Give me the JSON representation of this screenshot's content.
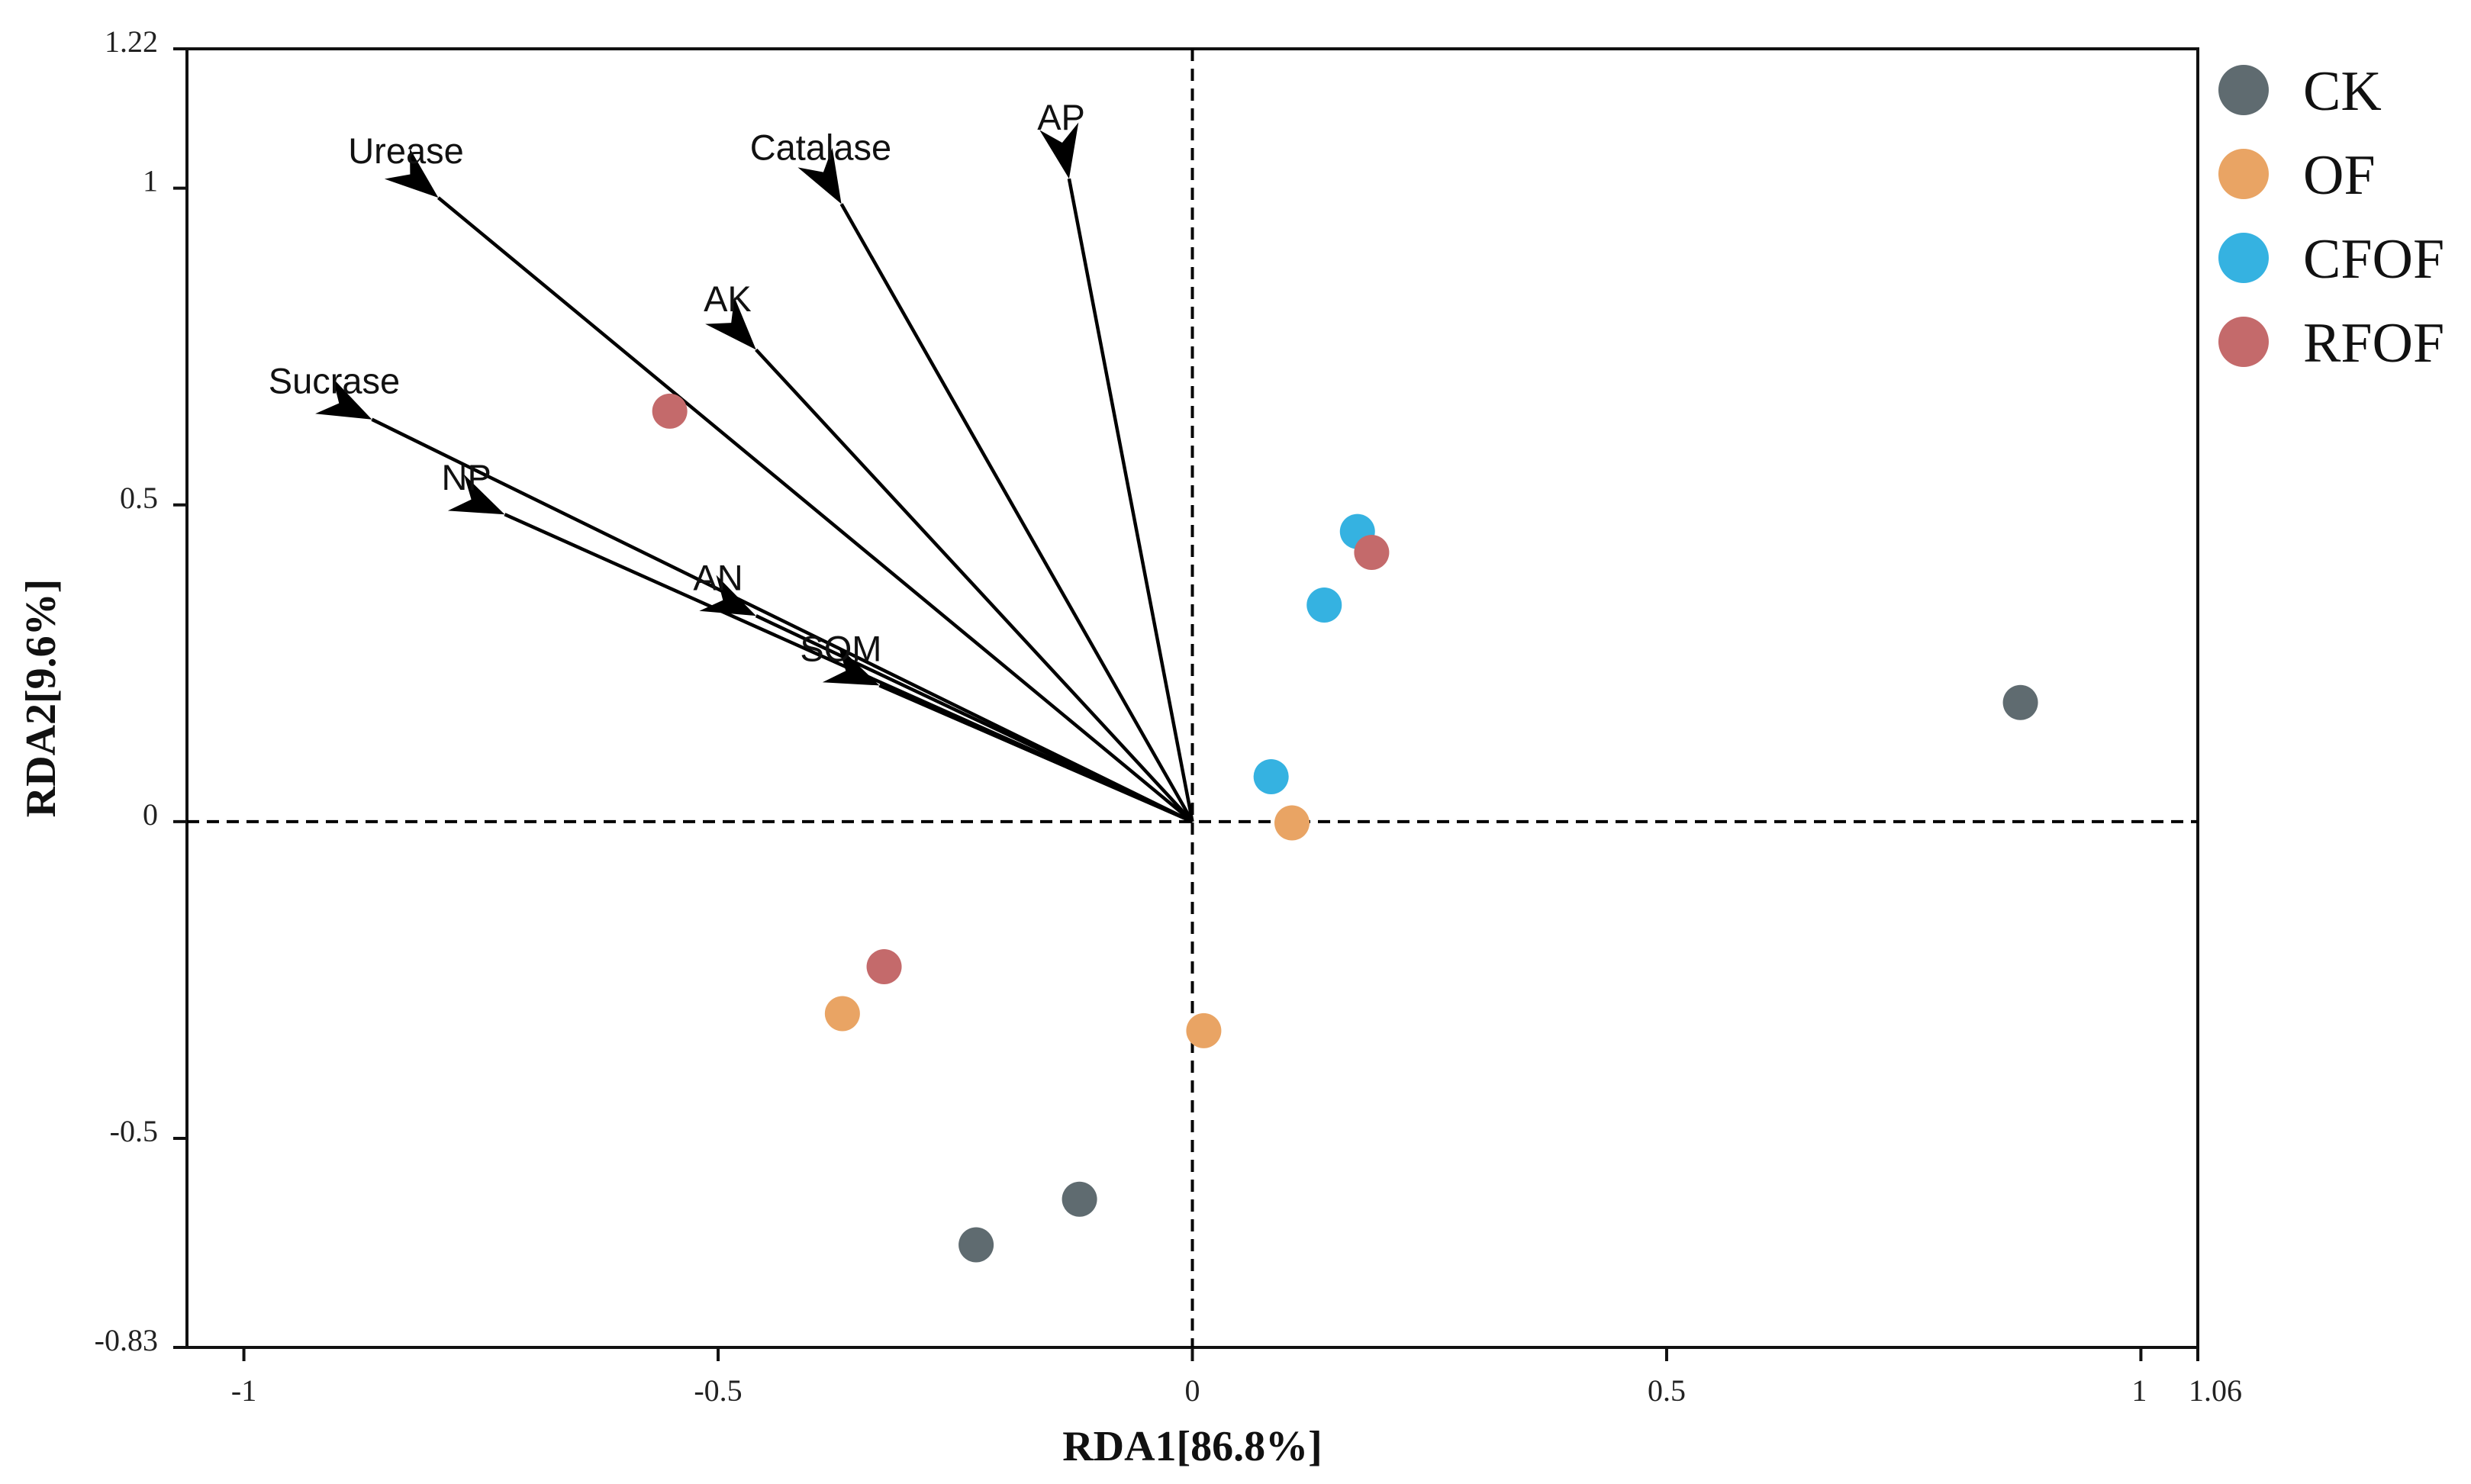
{
  "chart_data": {
    "type": "scatter",
    "subtype": "rda_biplot",
    "title": "",
    "xlabel": "RDA1[86.8%]",
    "ylabel": "RDA2[9.6%]",
    "xlim": [
      -1.06,
      1.06
    ],
    "ylim": [
      -0.83,
      1.22
    ],
    "xticks": [
      {
        "value": -1,
        "label": "-1"
      },
      {
        "value": -0.5,
        "label": "-0.5"
      },
      {
        "value": 0,
        "label": "0"
      },
      {
        "value": 0.5,
        "label": "0.5"
      },
      {
        "value": 1,
        "label": "1"
      },
      {
        "value": 1.06,
        "label": "1.06"
      }
    ],
    "yticks": [
      {
        "value": 1.22,
        "label": "1.22"
      },
      {
        "value": 1,
        "label": "1"
      },
      {
        "value": 0.5,
        "label": "0.5"
      },
      {
        "value": 0,
        "label": "0"
      },
      {
        "value": -0.5,
        "label": "-0.5"
      },
      {
        "value": -0.83,
        "label": "-0.83"
      }
    ],
    "zero_lines": true,
    "legend_position": "right",
    "series": [
      {
        "name": "CK",
        "color": "#5f6b70",
        "points": [
          [
            0.873,
            0.188
          ],
          [
            -0.119,
            -0.596
          ],
          [
            -0.228,
            -0.668
          ]
        ]
      },
      {
        "name": "OF",
        "color": "#e9a464",
        "points": [
          [
            0.105,
            -0.002
          ],
          [
            0.012,
            -0.33
          ],
          [
            -0.369,
            -0.303
          ]
        ]
      },
      {
        "name": "CFOF",
        "color": "#35b2e1",
        "points": [
          [
            0.174,
            0.458
          ],
          [
            0.139,
            0.342
          ],
          [
            0.083,
            0.071
          ]
        ]
      },
      {
        "name": "RFOF",
        "color": "#c46a6b",
        "points": [
          [
            0.189,
            0.425
          ],
          [
            -0.551,
            0.648
          ],
          [
            -0.325,
            -0.229
          ]
        ]
      }
    ],
    "vectors": [
      {
        "name": "Urease",
        "x": -0.795,
        "y": 0.985
      },
      {
        "name": "Catalase",
        "x": -0.37,
        "y": 0.975
      },
      {
        "name": "AP",
        "x": -0.13,
        "y": 1.015
      },
      {
        "name": "AK",
        "x": -0.46,
        "y": 0.745
      },
      {
        "name": "Sucrase",
        "x": -0.865,
        "y": 0.635
      },
      {
        "name": "NP",
        "x": -0.725,
        "y": 0.485
      },
      {
        "name": "AN",
        "x": -0.46,
        "y": 0.325
      },
      {
        "name": "SOM",
        "x": -0.33,
        "y": 0.215
      }
    ]
  }
}
